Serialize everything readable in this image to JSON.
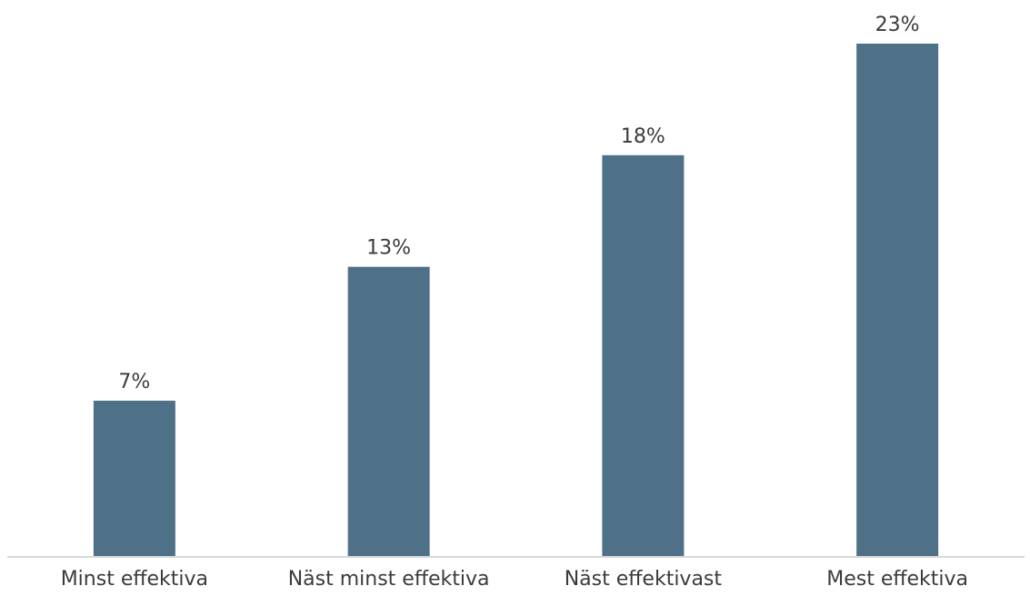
{
  "chart_data": {
    "type": "bar",
    "categories": [
      "Minst effektiva",
      "Näst minst effektiva",
      "Näst effektivast",
      "Mest effektiva"
    ],
    "values": [
      7,
      13,
      18,
      23
    ],
    "value_labels": [
      "7%",
      "13%",
      "18%",
      "23%"
    ],
    "title": "",
    "xlabel": "",
    "ylabel": "",
    "ylim": [
      0,
      23
    ],
    "grid": false,
    "legend": "none",
    "colors": {
      "bar": "#4f7187",
      "axis": "#d9d9d9",
      "text": "#3b3b3b"
    }
  }
}
